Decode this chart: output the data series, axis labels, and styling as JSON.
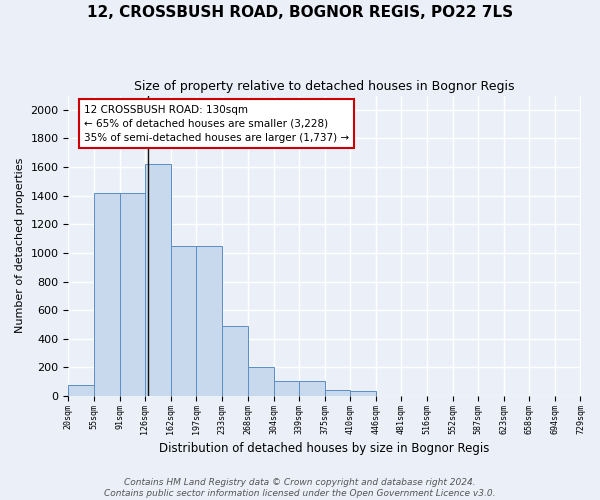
{
  "title1": "12, CROSSBUSH ROAD, BOGNOR REGIS, PO22 7LS",
  "title2": "Size of property relative to detached houses in Bognor Regis",
  "xlabel": "Distribution of detached houses by size in Bognor Regis",
  "ylabel": "Number of detached properties",
  "footnote1": "Contains HM Land Registry data © Crown copyright and database right 2024.",
  "footnote2": "Contains public sector information licensed under the Open Government Licence v3.0.",
  "bin_edges": [
    20,
    55,
    91,
    126,
    162,
    197,
    233,
    268,
    304,
    339,
    375,
    410,
    446,
    481,
    516,
    552,
    587,
    623,
    658,
    694,
    729
  ],
  "bar_heights": [
    80,
    1420,
    1420,
    1620,
    1050,
    1050,
    490,
    205,
    105,
    105,
    40,
    35,
    0,
    0,
    0,
    0,
    0,
    0,
    0,
    0
  ],
  "bar_color": "#c9d9ed",
  "bar_edge_color": "#5b8ec4",
  "vline_x": 130,
  "vline_color": "#111111",
  "annotation_line1": "12 CROSSBUSH ROAD: 130sqm",
  "annotation_line2": "← 65% of detached houses are smaller (3,228)",
  "annotation_line3": "35% of semi-detached houses are larger (1,737) →",
  "annotation_box_color": "#ffffff",
  "annotation_border_color": "#cc0000",
  "ylim": [
    0,
    2100
  ],
  "yticks": [
    0,
    200,
    400,
    600,
    800,
    1000,
    1200,
    1400,
    1600,
    1800,
    2000
  ],
  "background_color": "#eaeff8",
  "plot_bg_color": "#eaeff8",
  "grid_color": "#ffffff",
  "title1_fontsize": 11,
  "title2_fontsize": 9
}
